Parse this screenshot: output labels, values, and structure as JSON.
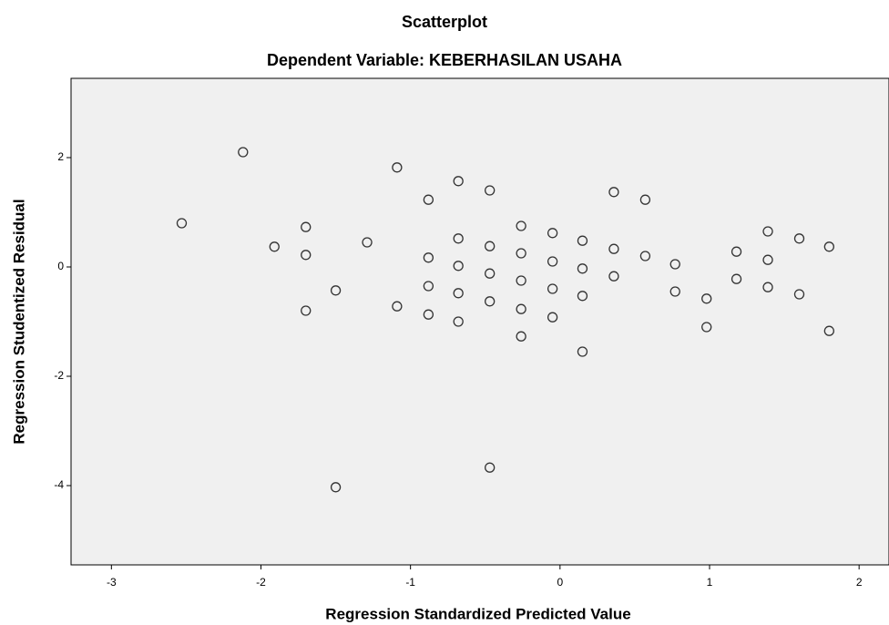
{
  "chart_data": {
    "type": "scatter",
    "title": "Scatterplot",
    "subtitle": "Dependent Variable: KEBERHASILAN USAHA",
    "x_label": "Regression Standardized Predicted Value",
    "y_label": "Regression Studentized Residual",
    "x": [
      -2.53,
      -2.12,
      -1.91,
      -1.7,
      -1.7,
      -1.7,
      -1.5,
      -1.5,
      -1.29,
      -1.09,
      -1.09,
      -0.88,
      -0.88,
      -0.88,
      -0.88,
      -0.68,
      -0.68,
      -0.68,
      -0.68,
      -0.68,
      -0.47,
      -0.47,
      -0.47,
      -0.47,
      -0.47,
      -0.26,
      -0.26,
      -0.26,
      -0.26,
      -0.26,
      -0.05,
      -0.05,
      -0.05,
      -0.05,
      0.15,
      0.15,
      0.15,
      0.15,
      0.36,
      0.36,
      0.36,
      0.57,
      0.57,
      0.77,
      0.77,
      0.98,
      0.98,
      1.18,
      1.18,
      1.39,
      1.39,
      1.39,
      1.6,
      1.6,
      1.8,
      1.8
    ],
    "values": [
      0.8,
      2.1,
      0.37,
      0.73,
      0.22,
      -0.8,
      -0.43,
      -4.03,
      0.45,
      1.82,
      -0.72,
      1.23,
      0.17,
      -0.35,
      -0.87,
      1.57,
      0.52,
      0.02,
      -0.48,
      -1.0,
      1.4,
      0.38,
      -0.12,
      -0.63,
      -3.67,
      0.75,
      0.25,
      -0.25,
      -0.77,
      -1.27,
      0.62,
      0.1,
      -0.4,
      -0.92,
      0.48,
      -0.03,
      -0.53,
      -1.55,
      1.37,
      0.33,
      -0.17,
      1.23,
      0.2,
      0.05,
      -0.45,
      -0.58,
      -1.1,
      0.28,
      -0.22,
      0.65,
      0.13,
      -0.37,
      0.52,
      -0.5,
      0.37,
      -1.17
    ],
    "color": "#333333",
    "xlim": [
      -3.27,
      2.2
    ],
    "ylim": [
      -5.45,
      3.45
    ],
    "xticks": [
      -3,
      -2,
      -1,
      0,
      1,
      2
    ],
    "yticks": [
      -4,
      -2,
      0,
      2
    ],
    "grid": false
  }
}
